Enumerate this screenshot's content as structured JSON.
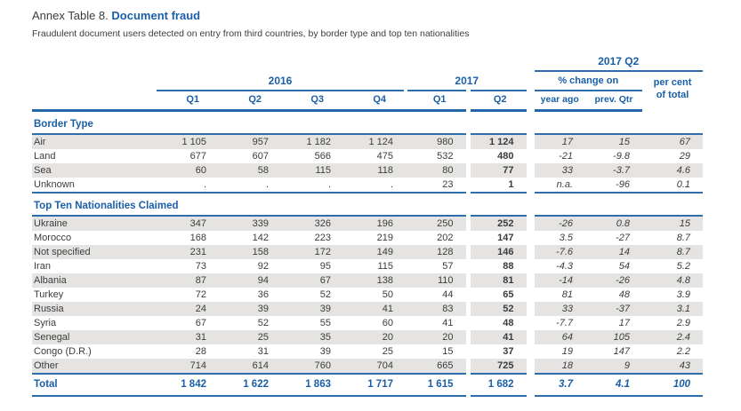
{
  "page": {
    "title_prefix": "Annex Table 8.",
    "title_highlight": "Document fraud",
    "subtitle": "Fraudulent document users detected on entry from third countries, by border type and top ten nationalities"
  },
  "colors": {
    "accent_blue": "#1a5fa8",
    "rule_blue": "#2e6dac",
    "row_gray": "#e5e4e2",
    "body_text": "#3c3c3c"
  },
  "table": {
    "header": {
      "top_group": "2017 Q2",
      "group_2016": "2016",
      "group_2017": "2017",
      "pct_change_group": "% change on",
      "per_cent_line1": "per cent",
      "per_cent_line2": "of total",
      "quarter_cols": [
        "Q1",
        "Q2",
        "Q3",
        "Q4",
        "Q1",
        "Q2"
      ],
      "change_cols": [
        "year ago",
        "prev. Qtr"
      ]
    },
    "sections": [
      {
        "title": "Border Type",
        "rows": [
          {
            "label": "Air",
            "values": [
              "1 105",
              "957",
              "1 182",
              "1 124",
              "980",
              "1 124",
              "17",
              "15",
              "67"
            ]
          },
          {
            "label": "Land",
            "values": [
              "677",
              "607",
              "566",
              "475",
              "532",
              "480",
              "-21",
              "-9.8",
              "29"
            ]
          },
          {
            "label": "Sea",
            "values": [
              "60",
              "58",
              "115",
              "118",
              "80",
              "77",
              "33",
              "-3.7",
              "4.6"
            ]
          },
          {
            "label": "Unknown",
            "values": [
              ".",
              ".",
              ".",
              ".",
              "23",
              "1",
              "n.a.",
              "-96",
              "0.1"
            ]
          }
        ]
      },
      {
        "title": "Top Ten Nationalities Claimed",
        "rows": [
          {
            "label": "Ukraine",
            "values": [
              "347",
              "339",
              "326",
              "196",
              "250",
              "252",
              "-26",
              "0.8",
              "15"
            ]
          },
          {
            "label": "Morocco",
            "values": [
              "168",
              "142",
              "223",
              "219",
              "202",
              "147",
              "3.5",
              "-27",
              "8.7"
            ]
          },
          {
            "label": "Not specified",
            "values": [
              "231",
              "158",
              "172",
              "149",
              "128",
              "146",
              "-7.6",
              "14",
              "8.7"
            ]
          },
          {
            "label": "Iran",
            "values": [
              "73",
              "92",
              "95",
              "115",
              "57",
              "88",
              "-4.3",
              "54",
              "5.2"
            ]
          },
          {
            "label": "Albania",
            "values": [
              "87",
              "94",
              "67",
              "138",
              "110",
              "81",
              "-14",
              "-26",
              "4.8"
            ]
          },
          {
            "label": "Turkey",
            "values": [
              "72",
              "36",
              "52",
              "50",
              "44",
              "65",
              "81",
              "48",
              "3.9"
            ]
          },
          {
            "label": "Russia",
            "values": [
              "24",
              "39",
              "39",
              "41",
              "83",
              "52",
              "33",
              "-37",
              "3.1"
            ]
          },
          {
            "label": "Syria",
            "values": [
              "67",
              "52",
              "55",
              "60",
              "41",
              "48",
              "-7.7",
              "17",
              "2.9"
            ]
          },
          {
            "label": "Senegal",
            "values": [
              "31",
              "25",
              "35",
              "20",
              "20",
              "41",
              "64",
              "105",
              "2.4"
            ]
          },
          {
            "label": "Congo (D.R.)",
            "values": [
              "28",
              "31",
              "39",
              "25",
              "15",
              "37",
              "19",
              "147",
              "2.2"
            ]
          },
          {
            "label": "Other",
            "values": [
              "714",
              "614",
              "760",
              "704",
              "665",
              "725",
              "18",
              "9",
              "43"
            ]
          }
        ]
      }
    ],
    "total": {
      "label": "Total",
      "values": [
        "1 842",
        "1 622",
        "1 863",
        "1 717",
        "1 615",
        "1 682",
        "3.7",
        "4.1",
        "100"
      ]
    }
  }
}
